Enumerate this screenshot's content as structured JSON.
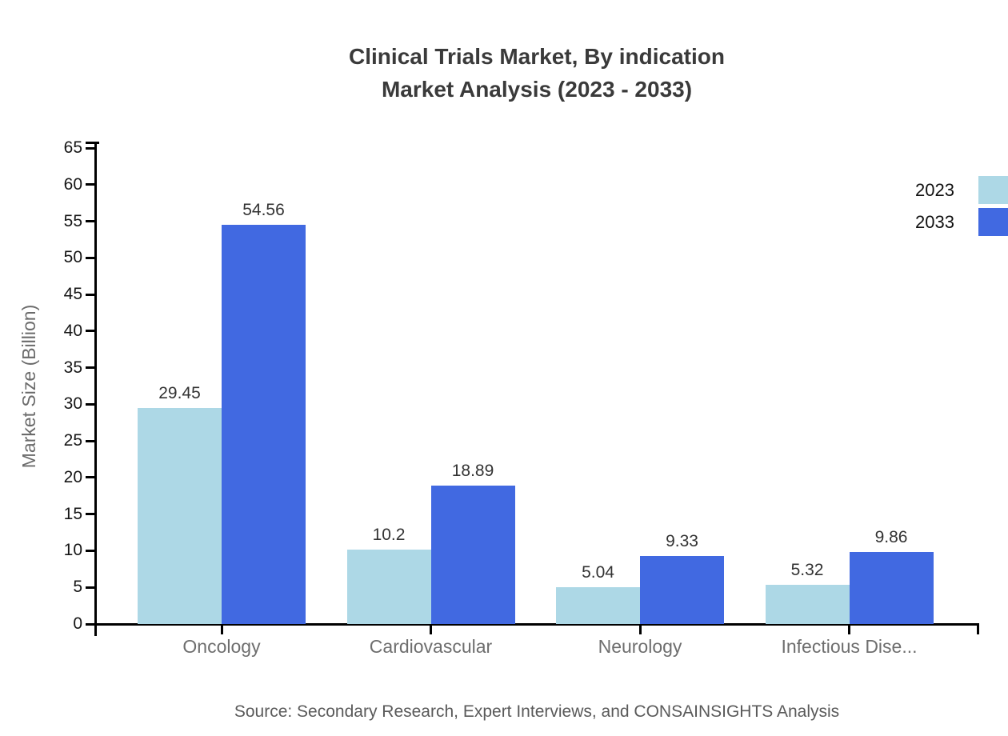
{
  "title": {
    "line1": "Clinical Trials Market, By indication",
    "line2": "Market Analysis (2023 - 2033)"
  },
  "source": {
    "text": "Source: Secondary Research, Expert Interviews, and CONSAINSIGHTS Analysis"
  },
  "chart_data": {
    "type": "bar",
    "title": "Clinical Trials Market, By indication — Market Analysis (2023 - 2033)",
    "categories": [
      "Oncology",
      "Cardiovascular",
      "Neurology",
      "Infectious Dise..."
    ],
    "series": [
      {
        "name": "2023",
        "color": "#ADD8E6",
        "values": [
          29.45,
          10.2,
          5.04,
          5.32
        ]
      },
      {
        "name": "2033",
        "color": "#4169E1",
        "values": [
          54.56,
          18.89,
          9.33,
          9.86
        ]
      }
    ],
    "xlabel": "",
    "ylabel": "Market Size (Billion)",
    "ylim": [
      0,
      65
    ],
    "ytick_step": 5,
    "grid": false,
    "value_labels": true,
    "legend_position": "top-right",
    "axis_color": "#000000",
    "bar_orientation": "vertical"
  }
}
